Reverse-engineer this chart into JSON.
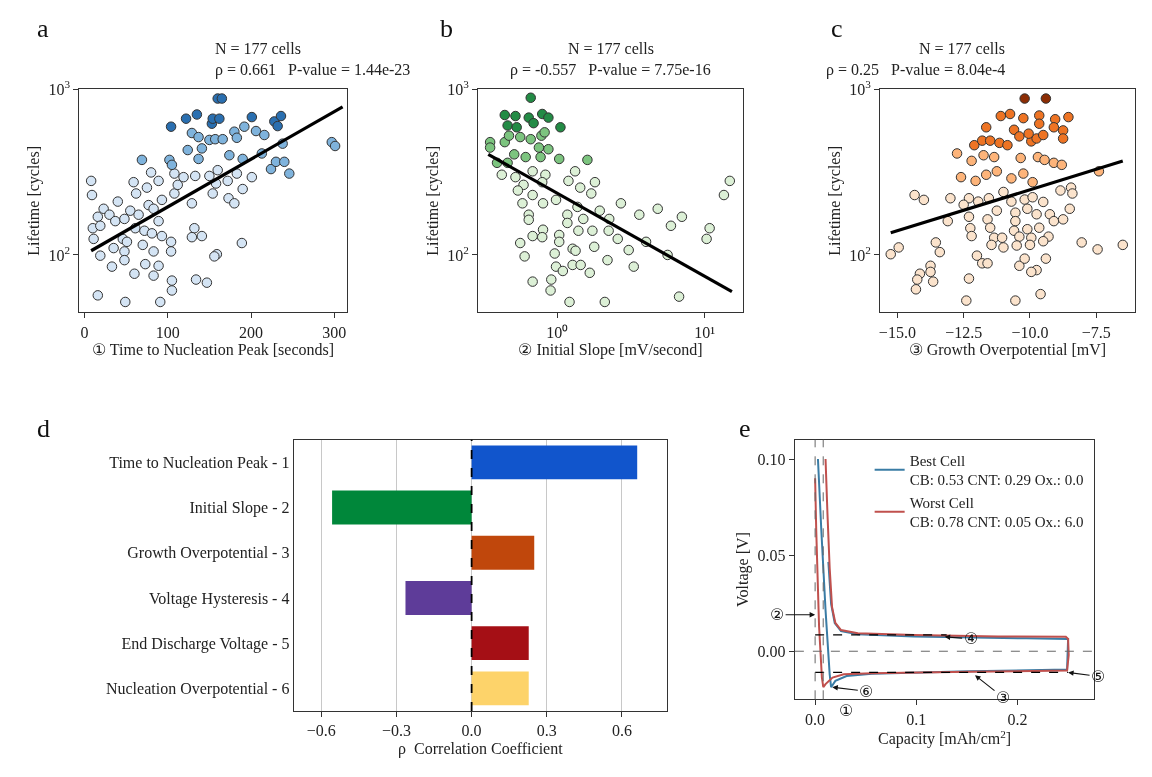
{
  "chart_data": [
    {
      "type": "scatter",
      "title": "N = 177 cells",
      "subtitle": "ρ = 0.661   P-value = 1.44e-23",
      "xlabel": "① Time to Nucleation Peak [seconds]",
      "ylabel": "Lifetime [cycles]",
      "log": true,
      "marker": "circle",
      "grid": false,
      "annotations": [
        "a"
      ],
      "xlim": [
        -6,
        315
      ],
      "xticks": [
        0,
        100,
        200,
        300
      ],
      "ylim": [
        45,
        1000
      ],
      "yticks": [
        {
          "value": 100,
          "label": "10$^{2}$"
        },
        {
          "value": 1000,
          "label": "10$^{3}$"
        }
      ],
      "series": [
        {
          "type": "scatter",
          "color": "#d4e4f4",
          "x": [
            80,
            108,
            133,
            150,
            160,
            172,
            183,
            201,
            8,
            9,
            59,
            62,
            89,
            75,
            93,
            108,
            112,
            119,
            154,
            158,
            173,
            180,
            190,
            129,
            40,
            23,
            77,
            16,
            30,
            37,
            48,
            55,
            65,
            83,
            89,
            10,
            19,
            11,
            61,
            72,
            81,
            93,
            46,
            51,
            35,
            48,
            70,
            83,
            104,
            104,
            19,
            132,
            129,
            141,
            189,
            159,
            156,
            33,
            48,
            60,
            73,
            89,
            83,
            105,
            105,
            134,
            147,
            16,
            49,
            91
          ],
          "values": [
            315,
            310,
            300,
            300,
            325,
            280,
            310,
            295,
            280,
            230,
            275,
            235,
            280,
            255,
            215,
            235,
            265,
            295,
            235,
            270,
            220,
            205,
            250,
            205,
            210,
            190,
            200,
            170,
            175,
            160,
            165,
            185,
            175,
            190,
            160,
            145,
            150,
            125,
            145,
            140,
            135,
            130,
            125,
            120,
            110,
            105,
            115,
            105,
            120,
            105,
            99,
            145,
            128,
            130,
            118,
            101,
            98,
            85,
            93,
            77,
            88,
            86,
            75,
            70,
            61,
            71,
            68,
            57,
            52,
            52
          ]
        },
        {
          "type": "scatter",
          "color": "#7fb3dc",
          "x": [
            129,
            137,
            150,
            157,
            166,
            180,
            192,
            206,
            216,
            183,
            238,
            297,
            301,
            124,
            141,
            137,
            102,
            69,
            105,
            174,
            190,
            213,
            224,
            230,
            240,
            246
          ],
          "values": [
            545,
            515,
            495,
            500,
            500,
            555,
            595,
            560,
            530,
            510,
            470,
            480,
            455,
            430,
            440,
            380,
            375,
            375,
            350,
            400,
            380,
            410,
            330,
            365,
            365,
            310
          ]
        },
        {
          "type": "scatter",
          "color": "#2a6fb0",
          "x": [
            160,
            165,
            104,
            122,
            135,
            153,
            154,
            162,
            201,
            228,
            236,
            232
          ],
          "values": [
            880,
            880,
            595,
            665,
            705,
            620,
            665,
            665,
            680,
            640,
            690,
            600
          ]
        },
        {
          "type": "line",
          "marker": "none",
          "color": "#000000",
          "x": [
            8,
            310
          ],
          "values": [
            106,
            785
          ]
        }
      ]
    },
    {
      "type": "scatter",
      "title": "N = 177 cells",
      "subtitle": "ρ = -0.557   P-value = 7.75e-16",
      "xlabel": "② Initial Slope [mV/second]",
      "ylabel": "Lifetime [cycles]",
      "log": "xy",
      "marker": "circle",
      "grid": false,
      "annotations": [
        "b"
      ],
      "xlim": [
        0.29,
        18.2
      ],
      "xticks": [
        {
          "value": 1,
          "label": "10⁰"
        },
        {
          "value": 10,
          "label": "10¹"
        }
      ],
      "ylim": [
        45,
        1000
      ],
      "yticks": [
        {
          "value": 100,
          "label": "10$^{2}$"
        },
        {
          "value": 1000,
          "label": "10$^{3}$"
        }
      ],
      "series": [
        {
          "type": "scatter",
          "color": "#dcf0d6",
          "x": [
            0.42,
            0.52,
            0.68,
            0.83,
            0.59,
            0.79,
            1.32,
            1.19,
            1.8,
            0.54,
            0.68,
            0.98,
            0.8,
            0.58,
            1.43,
            1.7,
            2.7,
            1.94,
            1.37,
            1.17,
            1.5,
            2.25,
            3.6,
            4.8,
            7.0,
            5.9,
            13.5,
            14.8,
            10.8,
            10.3,
            0.64,
            0.64,
            0.8,
            0.79,
            0.68,
            0.56,
            1.03,
            1.03,
            1.17,
            1.39,
            1.73,
            2.23,
            2.57,
            3.05,
            4.0,
            1.27,
            1.33,
            1.78,
            2.19,
            5.6,
            0.96,
            0.6,
            0.98,
            1.27,
            1.44,
            3.3,
            1.66,
            1.09,
            0.91,
            0.68,
            0.9,
            6.7,
            1.21,
            2.1
          ],
          "values": [
            305,
            295,
            320,
            305,
            265,
            275,
            320,
            280,
            275,
            245,
            230,
            215,
            205,
            205,
            255,
            235,
            205,
            185,
            195,
            175,
            165,
            165,
            175,
            190,
            170,
            150,
            230,
            280,
            145,
            125,
            175,
            163,
            142,
            128,
            130,
            118,
            132,
            120,
            156,
            140,
            140,
            140,
            125,
            107,
            120,
            109,
            106,
            112,
            93,
            100,
            102,
            98,
            85,
            87,
            87,
            85,
            78,
            80,
            71,
            69,
            61,
            56,
            52,
            52
          ]
        },
        {
          "type": "scatter",
          "color": "#7cc47f",
          "x": [
            0.35,
            0.35,
            0.44,
            0.47,
            0.56,
            0.66,
            0.78,
            0.82,
            0.87,
            0.75,
            0.51,
            0.61,
            0.77,
            1.03,
            1.6,
            0.39,
            0.46
          ],
          "values": [
            480,
            445,
            480,
            525,
            515,
            500,
            525,
            550,
            435,
            445,
            405,
            390,
            390,
            380,
            375,
            360,
            360
          ]
        },
        {
          "type": "scatter",
          "color": "#238b45",
          "x": [
            0.66,
            0.44,
            0.52,
            0.64,
            0.79,
            0.87,
            1.05,
            0.46,
            0.53,
            0.69
          ],
          "values": [
            890,
            700,
            690,
            675,
            710,
            675,
            590,
            605,
            590,
            625
          ]
        },
        {
          "type": "line",
          "marker": "none",
          "color": "#000000",
          "x": [
            0.34,
            15.3
          ],
          "values": [
            405,
            60
          ]
        }
      ]
    },
    {
      "type": "scatter",
      "title": "N = 177 cells",
      "subtitle": "ρ = 0.25   P-value = 8.04e-4",
      "xlabel": "③ Growth Overpotential [mV]",
      "ylabel": "Lifetime [cycles]",
      "log": true,
      "marker": "circle",
      "grid": false,
      "annotations": [
        "c"
      ],
      "xlim": [
        -15.65,
        -6.05
      ],
      "xticks": [
        {
          "value": -15,
          "label": "−15.0"
        },
        {
          "value": -12.5,
          "label": "−12.5"
        },
        {
          "value": -10,
          "label": "−10.0"
        },
        {
          "value": -7.5,
          "label": "−7.5"
        }
      ],
      "ylim": [
        45,
        1000
      ],
      "yticks": [
        {
          "value": 100,
          "label": "10$^{2}$"
        },
        {
          "value": 1000,
          "label": "10$^{3}$"
        }
      ],
      "series": [
        {
          "type": "scatter",
          "color": "#fbe3cc",
          "x": [
            -14.35,
            -14.0,
            -13.0,
            -12.3,
            -11.95,
            -11.55,
            -11.0,
            -10.7,
            -10.2,
            -9.9,
            -9.5,
            -8.85,
            -8.45,
            -8.4,
            -13.1,
            -12.5,
            -12.3,
            -11.6,
            -11.25,
            -10.55,
            -10.1,
            -9.75,
            -9.25,
            -9.1,
            -8.75,
            -8.5,
            -12.25,
            -11.5,
            -10.55,
            -10.6,
            -10.1,
            -9.65,
            -12.2,
            -11.35,
            -11.05,
            -10.4,
            -9.95,
            -9.3,
            -11.45,
            -11.0,
            -10.5,
            -10.0,
            -9.5,
            -13.55,
            -8.05,
            -7.45,
            -6.5,
            -15.25,
            -14.95,
            -13.4,
            -12.0,
            -11.8,
            -11.6,
            -10.4,
            -10.2,
            -9.75,
            -9.4,
            -9.95,
            -13.75,
            -13.75,
            -13.65,
            -14.15,
            -14.25,
            -14.3,
            -12.3,
            -12.4,
            -10.55,
            -9.6
          ],
          "values": [
            230,
            215,
            220,
            220,
            210,
            220,
            240,
            210,
            216,
            223,
            209,
            245,
            255,
            235,
            160,
            201,
            170,
            164,
            185,
            180,
            190,
            176,
            176,
            160,
            164,
            190,
            145,
            146,
            160,
            140,
            143,
            146,
            130,
            127,
            127,
            129,
            127,
            129,
            115,
            111,
            114,
            115,
            121,
            119,
            119,
            108,
            115,
            101,
            111,
            104,
            99,
            89,
            89,
            86,
            95,
            81,
            95,
            79,
            86,
            79,
            69,
            77,
            71,
            62,
            72,
            53,
            53,
            58
          ]
        },
        {
          "type": "scatter",
          "color": "#fdb47a",
          "x": [
            -12.75,
            -12.2,
            -11.75,
            -11.35,
            -10.35,
            -9.7,
            -9.1,
            -8.8,
            -9.45,
            -12.6,
            -12.05,
            -11.65,
            -11.25,
            -10.7,
            -10.25,
            -9.9,
            -7.4
          ],
          "values": [
            410,
            370,
            400,
            390,
            385,
            390,
            360,
            350,
            375,
            295,
            280,
            305,
            320,
            290,
            310,
            275,
            320
          ]
        },
        {
          "type": "scatter",
          "color": "#ee7424",
          "x": [
            -11.1,
            -10.75,
            -10.25,
            -9.65,
            -9.65,
            -9.05,
            -8.55,
            -11.65,
            -9.1,
            -8.75,
            -8.75,
            -10.6,
            -12.1,
            -11.8,
            -11.5,
            -11.15,
            -10.85,
            -10.4,
            -9.95,
            -9.75,
            -9.5,
            -10.05
          ],
          "values": [
            690,
            710,
            670,
            695,
            620,
            660,
            680,
            590,
            590,
            565,
            505,
            570,
            460,
            490,
            490,
            475,
            460,
            520,
            485,
            505,
            530,
            540
          ]
        },
        {
          "type": "scatter",
          "color": "#8c2d04",
          "x": [
            -10.2,
            -9.4
          ],
          "values": [
            880,
            880
          ]
        },
        {
          "type": "line",
          "marker": "none",
          "color": "#000000",
          "x": [
            -15.25,
            -6.5
          ],
          "values": [
            136,
            369
          ]
        }
      ]
    },
    {
      "type": "bar",
      "orientation": "horizontal",
      "xlabel": "ρ  Correlation Coefficient",
      "grid": "x",
      "annotations": [
        "d"
      ],
      "categories": [
        "Time to Nucleation Peak - 1",
        "Initial Slope - 2",
        "Growth Overpotential - 3",
        "Voltage Hysteresis - 4",
        "End Discharge Voltage - 5",
        "Nucleation Overpotential - 6"
      ],
      "values": [
        0.661,
        -0.557,
        0.25,
        -0.264,
        0.228,
        0.228
      ],
      "colors": [
        "#1155cc",
        "#00873a",
        "#c0470c",
        "#5e3c99",
        "#a50f15",
        "#fdd36a"
      ],
      "xlim": [
        -0.71,
        0.78
      ],
      "xticks": [
        {
          "value": -0.6,
          "label": "−0.6"
        },
        {
          "value": -0.3,
          "label": "−0.3"
        },
        {
          "value": 0,
          "label": "0.0"
        },
        0.3,
        0.6
      ],
      "ref_lines": [
        {
          "axis": "x",
          "value": 0,
          "line_style": "dashed",
          "color": "#000000"
        }
      ]
    },
    {
      "type": "line",
      "xlabel": "Capacity [mAh/cm$^{2}$]",
      "ylabel": "Voltage [V]",
      "legend": "top right",
      "grid": false,
      "annotations": [
        "e",
        {
          "text": "②",
          "x": 0,
          "y": 0.019
        },
        {
          "text": "④",
          "x": 0.128,
          "y": 0.0075
        },
        {
          "text": "⑤",
          "x": 0.25,
          "y": -0.011
        },
        {
          "text": "③",
          "x": 0.158,
          "y": -0.0125
        },
        {
          "text": "⑥",
          "x": 0.017,
          "y": -0.0187
        },
        "①"
      ],
      "xlim": [
        -0.02,
        0.276
      ],
      "xticks": [
        {
          "value": 0,
          "label": "0.0"
        },
        0.1,
        0.2
      ],
      "ylim": [
        -0.025,
        0.11
      ],
      "yticks": [
        {
          "value": 0,
          "label": "0.00"
        },
        0.05,
        {
          "value": 0.1,
          "label": "0.10"
        }
      ],
      "ref_lines": [
        {
          "axis": "x",
          "value": 0,
          "line_style": "dashed",
          "color": "#666666"
        },
        {
          "axis": "x",
          "value": 0.008,
          "line_style": "dashed",
          "color": "#666666"
        },
        {
          "axis": "y",
          "value": 0,
          "line_style": "dashed",
          "color": "#666666"
        }
      ],
      "series": [
        {
          "name": "Best Cell\nCB: 0.53 CNT: 0.29 Ox.: 0.0",
          "color": "#3a7ca5",
          "x": [
            0.0028,
            0.0061,
            0.0103,
            0.0144,
            0.0158,
            0.02,
            0.0311,
            0.0561,
            0.153,
            0.249,
            0.25,
            0.209,
            0.0978,
            0.0422,
            0.0256,
            0.0194,
            0.0158,
            0.0131
          ],
          "values": [
            0.1,
            0.0632,
            0.0214,
            -0.012,
            -0.0187,
            -0.0154,
            -0.0129,
            -0.0117,
            -0.0104,
            -0.0095,
            0.0064,
            0.0067,
            0.0077,
            0.0089,
            0.0105,
            0.0147,
            0.0247,
            0.0465
          ]
        },
        {
          "name": "Worst Cell\nCB: 0.78 CNT: 0.05 Ox.: 6.0",
          "color": "#c0504d",
          "x": [
            0.0,
            0.0011,
            0.0039,
            0.0067,
            0.0081,
            0.0103,
            0.0172,
            0.0283,
            0.0561,
            0.153,
            0.249,
            0.2506,
            0.25,
            0.2478,
            0.181,
            0.0978,
            0.0422,
            0.0256,
            0.02,
            0.0167,
            0.0144,
            0.0122,
            0.0103
          ],
          "values": [
            0.09,
            0.063,
            0.013,
            -0.0137,
            -0.0187,
            -0.0171,
            -0.0137,
            -0.012,
            -0.0114,
            -0.0107,
            -0.01,
            -0.002,
            0.0064,
            0.0075,
            0.0077,
            0.0084,
            0.0094,
            0.011,
            0.0147,
            0.0231,
            0.0431,
            0.0716,
            0.1
          ]
        },
        {
          "color": "#000000",
          "line_style": "dashed",
          "x": [
            0,
            0.13
          ],
          "values": [
            0.0085,
            0.0085
          ]
        },
        {
          "color": "#000000",
          "line_style": "dashed",
          "x": [
            0,
            0.25
          ],
          "values": [
            -0.011,
            -0.011
          ]
        }
      ]
    }
  ]
}
